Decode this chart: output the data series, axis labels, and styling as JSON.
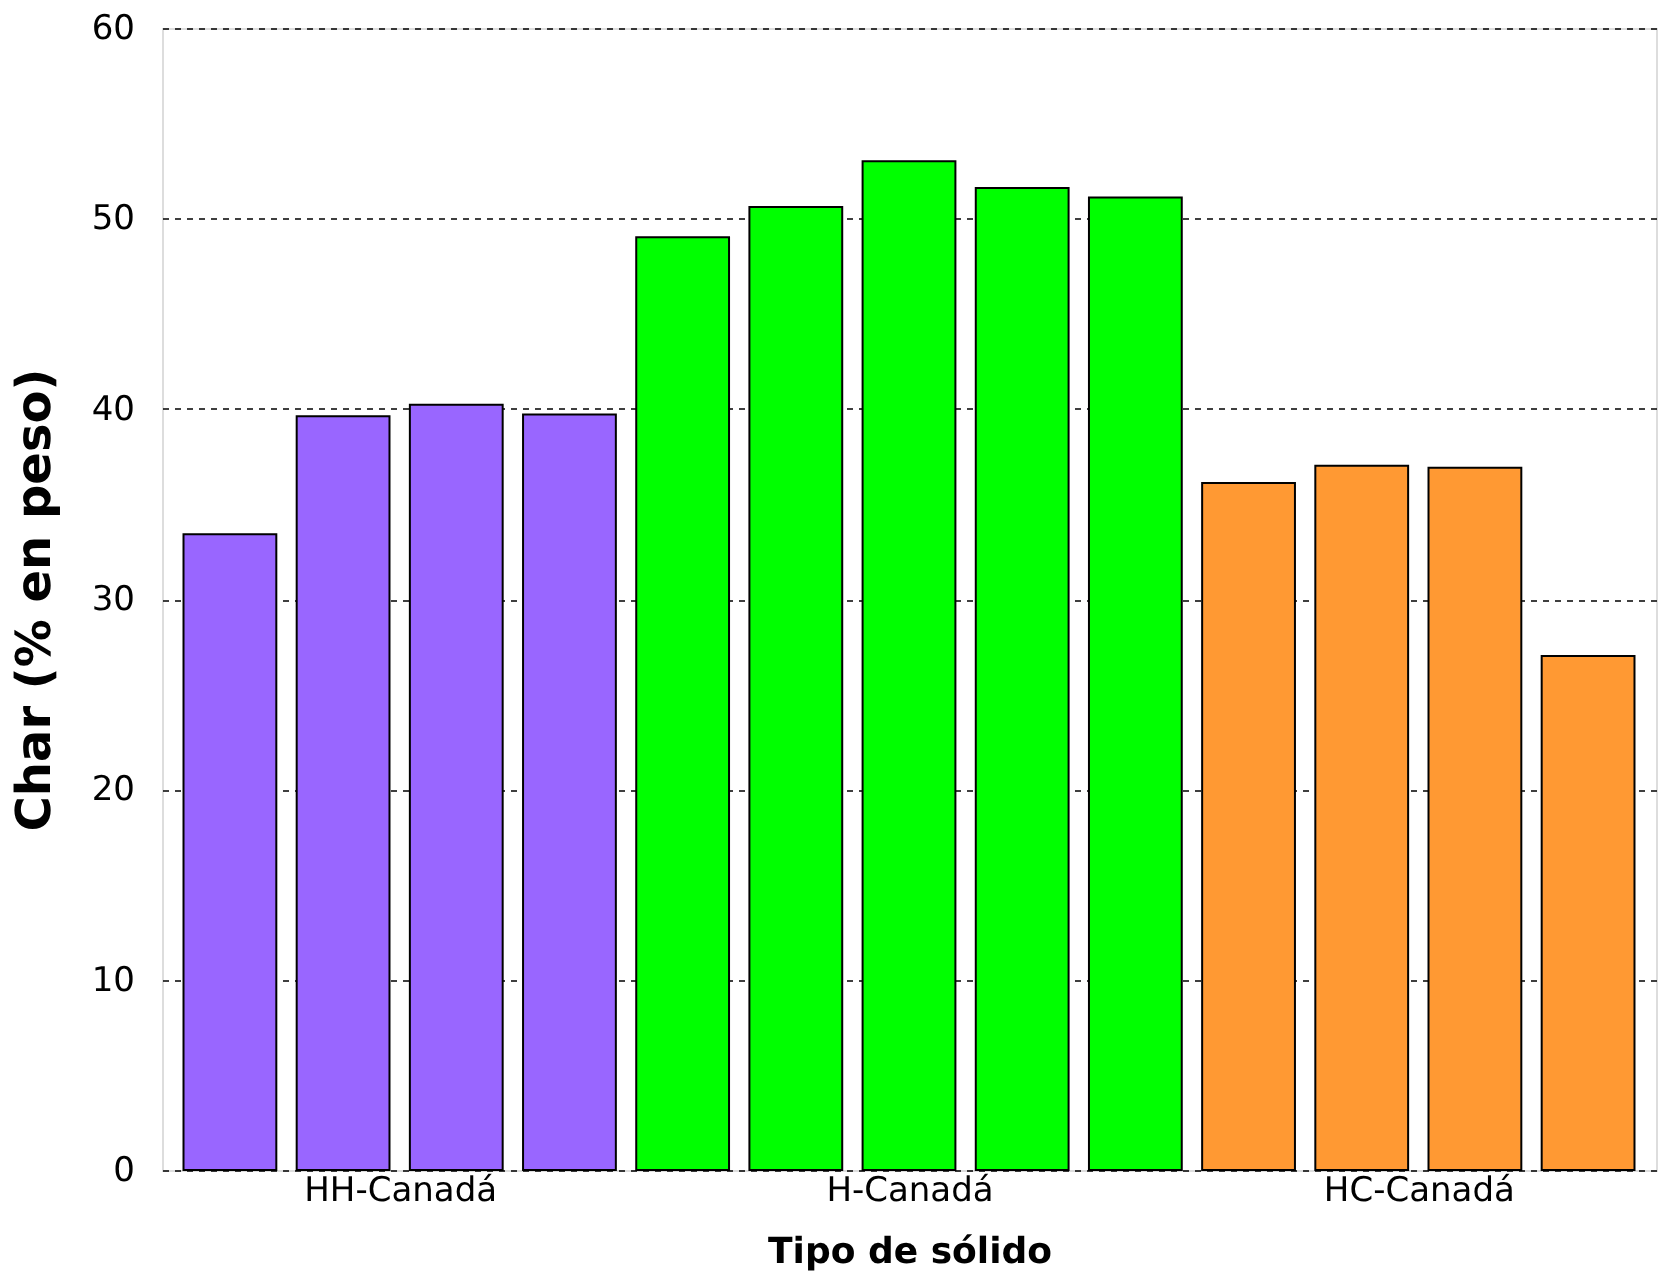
{
  "chart_data": {
    "type": "bar",
    "xlabel": "Tipo de sólido",
    "ylabel": "Char  (% en peso)",
    "categories": [
      "HH-Canadá",
      "H-Canadá",
      "HC-Canadá"
    ],
    "series": [
      {
        "values": [
          33.4,
          49.0,
          36.1
        ],
        "colors": [
          "#9966ff",
          "#00ff00",
          "#ff9933"
        ]
      },
      {
        "values": [
          39.6,
          50.6,
          37.0
        ],
        "colors": [
          "#9966ff",
          "#00ff00",
          "#ff9933"
        ]
      },
      {
        "values": [
          40.2,
          53.0,
          36.9
        ],
        "colors": [
          "#9966ff",
          "#00ff00",
          "#ff9933"
        ]
      },
      {
        "values": [
          39.7,
          51.6,
          27.0
        ],
        "colors": [
          "#9966ff",
          "#00ff00",
          "#ff9933"
        ]
      },
      {
        "values": [
          null,
          51.1,
          null
        ],
        "colors": [
          "#9966ff",
          "#00ff00",
          "#ff9933"
        ]
      }
    ],
    "ylim": [
      0,
      60
    ],
    "yticks": [
      0,
      10,
      20,
      30,
      40,
      50,
      60
    ],
    "grid": "y"
  }
}
